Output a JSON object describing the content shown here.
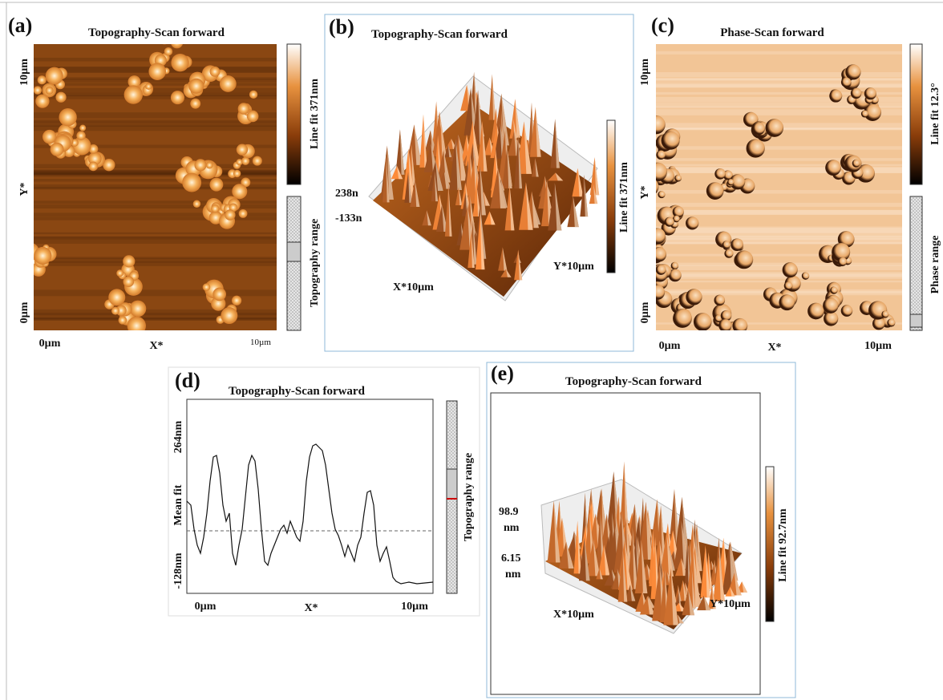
{
  "panels": {
    "a": {
      "label": "(a)",
      "title": "Topography-Scan forward",
      "y_top": "10µm",
      "y_axis": "Y*",
      "y_bottom": "0µm",
      "x_left": "0µm",
      "x_mid": "X*",
      "x_right": "10µm",
      "colorbar": "Line fit 371nm",
      "range": "Topography range"
    },
    "b": {
      "label": "(b)",
      "title": "Topography-Scan forward",
      "z_top": "238n",
      "z_bottom": "-133n",
      "x_axis": "X*10µm",
      "y_axis": "Y*10µm",
      "colorbar": "Line fit 371nm"
    },
    "c": {
      "label": "(c)",
      "title": "Phase-Scan forward",
      "y_top": "10µm",
      "y_axis": "Y*",
      "y_bottom": "0µm",
      "x_left": "0µm",
      "x_mid": "X*",
      "x_right": "10µm",
      "colorbar": "Line fit 12.3°",
      "range": "Phase range"
    },
    "d": {
      "label": "(d)",
      "title": "Topography-Scan forward",
      "y_top": "264nm",
      "y_mid": "Mean fit",
      "y_bottom": "-128nm",
      "x_left": "0µm",
      "x_mid": "X*",
      "x_right": "10µm",
      "range": "Topography range"
    },
    "e": {
      "label": "(e)",
      "title": "Topography-Scan forward",
      "z_top": "98.9",
      "z_top_unit": "nm",
      "z_bottom": "6.15",
      "z_bottom_unit": "nm",
      "x_axis": "X*10µm",
      "y_axis": "Y*10µm",
      "colorbar": "Line fit 92.7nm"
    }
  }
}
